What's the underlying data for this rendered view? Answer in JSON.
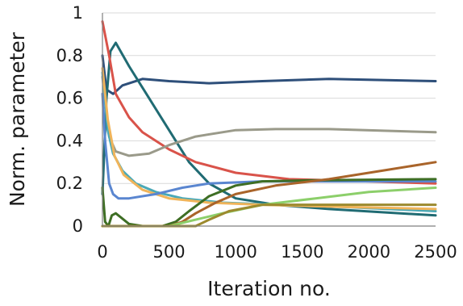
{
  "chart_data": {
    "type": "line",
    "title": "",
    "xlabel": "Iteration no.",
    "ylabel": "Norm. parameter",
    "xlim": [
      0,
      2500
    ],
    "ylim": [
      0,
      1
    ],
    "xticks": [
      0,
      500,
      1000,
      1500,
      2000,
      2500
    ],
    "yticks": [
      0,
      0.2,
      0.4,
      0.6,
      0.8,
      1
    ],
    "xtick_labels": [
      "0",
      "500",
      "1000",
      "1500",
      "2000",
      "2500"
    ],
    "ytick_labels": [
      "0",
      "0.2",
      "0.4",
      "0.6",
      "0.8",
      "1"
    ],
    "grid": "horizontal",
    "legend": "none",
    "series": [
      {
        "color": "#2e4f7a",
        "points": [
          [
            0,
            0.8
          ],
          [
            30,
            0.64
          ],
          [
            80,
            0.62
          ],
          [
            150,
            0.66
          ],
          [
            300,
            0.69
          ],
          [
            500,
            0.68
          ],
          [
            800,
            0.67
          ],
          [
            1200,
            0.68
          ],
          [
            1700,
            0.69
          ],
          [
            2500,
            0.68
          ]
        ]
      },
      {
        "color": "#206b73",
        "points": [
          [
            0,
            0.15
          ],
          [
            30,
            0.6
          ],
          [
            60,
            0.82
          ],
          [
            100,
            0.86
          ],
          [
            200,
            0.75
          ],
          [
            350,
            0.6
          ],
          [
            500,
            0.45
          ],
          [
            650,
            0.3
          ],
          [
            800,
            0.2
          ],
          [
            1000,
            0.13
          ],
          [
            1300,
            0.1
          ],
          [
            1700,
            0.08
          ],
          [
            2500,
            0.05
          ]
        ]
      },
      {
        "color": "#d9534a",
        "points": [
          [
            0,
            0.96
          ],
          [
            50,
            0.8
          ],
          [
            100,
            0.62
          ],
          [
            200,
            0.51
          ],
          [
            300,
            0.44
          ],
          [
            500,
            0.36
          ],
          [
            700,
            0.3
          ],
          [
            1000,
            0.25
          ],
          [
            1400,
            0.22
          ],
          [
            2000,
            0.21
          ],
          [
            2500,
            0.2
          ]
        ]
      },
      {
        "color": "#9a9a8a",
        "points": [
          [
            0,
            0.7
          ],
          [
            50,
            0.42
          ],
          [
            100,
            0.35
          ],
          [
            200,
            0.33
          ],
          [
            350,
            0.34
          ],
          [
            500,
            0.38
          ],
          [
            700,
            0.42
          ],
          [
            1000,
            0.45
          ],
          [
            1300,
            0.455
          ],
          [
            1700,
            0.455
          ],
          [
            2500,
            0.44
          ]
        ]
      },
      {
        "color": "#4aa9b7",
        "points": [
          [
            0,
            0.72
          ],
          [
            40,
            0.45
          ],
          [
            80,
            0.34
          ],
          [
            150,
            0.26
          ],
          [
            250,
            0.2
          ],
          [
            400,
            0.16
          ],
          [
            600,
            0.13
          ],
          [
            900,
            0.11
          ],
          [
            1300,
            0.1
          ],
          [
            1800,
            0.09
          ],
          [
            2500,
            0.07
          ]
        ]
      },
      {
        "color": "#f0b45a",
        "points": [
          [
            0,
            0.74
          ],
          [
            40,
            0.5
          ],
          [
            90,
            0.33
          ],
          [
            160,
            0.24
          ],
          [
            300,
            0.17
          ],
          [
            500,
            0.13
          ],
          [
            800,
            0.11
          ],
          [
            1200,
            0.1
          ],
          [
            1800,
            0.09
          ],
          [
            2500,
            0.08
          ]
        ]
      },
      {
        "color": "#5a86d0",
        "points": [
          [
            0,
            0.62
          ],
          [
            20,
            0.4
          ],
          [
            50,
            0.2
          ],
          [
            80,
            0.15
          ],
          [
            120,
            0.13
          ],
          [
            200,
            0.13
          ],
          [
            400,
            0.15
          ],
          [
            600,
            0.18
          ],
          [
            800,
            0.2
          ],
          [
            1200,
            0.21
          ],
          [
            1800,
            0.21
          ],
          [
            2500,
            0.21
          ]
        ]
      },
      {
        "color": "#3e6e24",
        "points": [
          [
            0,
            0.18
          ],
          [
            20,
            0.02
          ],
          [
            45,
            0
          ],
          [
            70,
            0.05
          ],
          [
            100,
            0.06
          ],
          [
            140,
            0.04
          ],
          [
            200,
            0.01
          ],
          [
            300,
            0
          ],
          [
            450,
            0
          ],
          [
            550,
            0.02
          ],
          [
            650,
            0.07
          ],
          [
            800,
            0.14
          ],
          [
            1000,
            0.19
          ],
          [
            1200,
            0.21
          ],
          [
            1600,
            0.215
          ],
          [
            2500,
            0.22
          ]
        ]
      },
      {
        "color": "#a9642a",
        "points": [
          [
            0,
            0
          ],
          [
            500,
            0
          ],
          [
            600,
            0.02
          ],
          [
            700,
            0.06
          ],
          [
            850,
            0.11
          ],
          [
            1000,
            0.15
          ],
          [
            1300,
            0.19
          ],
          [
            1700,
            0.22
          ],
          [
            2100,
            0.26
          ],
          [
            2500,
            0.3
          ]
        ]
      },
      {
        "color": "#8ccf6a",
        "points": [
          [
            0,
            0
          ],
          [
            500,
            0
          ],
          [
            700,
            0.03
          ],
          [
            900,
            0.06
          ],
          [
            1200,
            0.1
          ],
          [
            1600,
            0.13
          ],
          [
            2000,
            0.16
          ],
          [
            2500,
            0.18
          ]
        ]
      },
      {
        "color": "#9c8a2e",
        "points": [
          [
            0,
            0
          ],
          [
            700,
            0
          ],
          [
            800,
            0.03
          ],
          [
            950,
            0.07
          ],
          [
            1200,
            0.1
          ],
          [
            1600,
            0.1
          ],
          [
            2500,
            0.1
          ]
        ]
      }
    ]
  }
}
